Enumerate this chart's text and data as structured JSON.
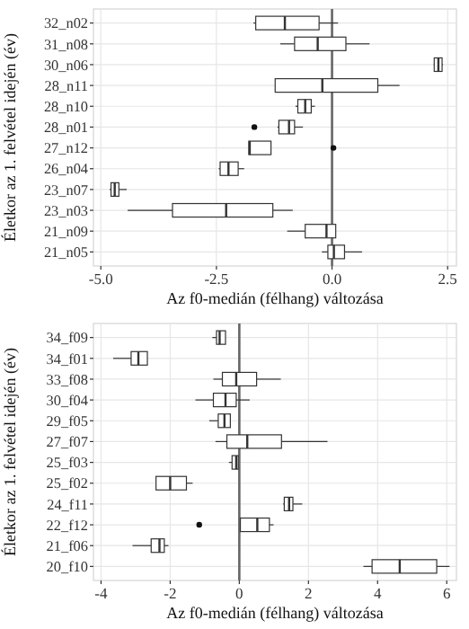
{
  "chart_data": [
    {
      "type": "box",
      "orientation": "horizontal",
      "xlabel": "Az f0-medián (félhang) változása",
      "ylabel": "Életkor az 1. felvétel idején (év)",
      "categories": [
        "32_n02",
        "31_n08",
        "30_n06",
        "28_n11",
        "28_n10",
        "28_n01",
        "27_n12",
        "26_n04",
        "23_n07",
        "23_n03",
        "21_n09",
        "21_n05"
      ],
      "boxes": [
        {
          "low": -1.7,
          "q1": -1.65,
          "median": -1.02,
          "q3": -0.28,
          "high": 0.13
        },
        {
          "low": -1.12,
          "q1": -0.81,
          "median": -0.31,
          "q3": 0.3,
          "high": 0.81
        },
        {
          "low": 2.2,
          "q1": 2.21,
          "median": 2.3,
          "q3": 2.38,
          "high": 2.4
        },
        {
          "low": -1.23,
          "q1": -1.23,
          "median": -0.21,
          "q3": 0.99,
          "high": 1.46
        },
        {
          "low": -0.79,
          "q1": -0.74,
          "median": -0.58,
          "q3": -0.45,
          "high": -0.37
        },
        {
          "low": -1.18,
          "q1": -1.15,
          "median": -0.93,
          "q3": -0.81,
          "high": -0.63,
          "outliers": [
            -1.68
          ]
        },
        {
          "low": -1.8,
          "q1": -1.8,
          "median": -1.78,
          "q3": -1.32,
          "high": -1.32,
          "outliers": [
            0.03
          ]
        },
        {
          "low": -2.45,
          "q1": -2.42,
          "median": -2.24,
          "q3": -2.03,
          "high": -1.9
        },
        {
          "low": -4.81,
          "q1": -4.78,
          "median": -4.7,
          "q3": -4.61,
          "high": -4.44
        },
        {
          "low": -4.42,
          "q1": -3.45,
          "median": -2.29,
          "q3": -1.28,
          "high": -0.85
        },
        {
          "low": -0.97,
          "q1": -0.58,
          "median": -0.12,
          "q3": 0.08,
          "high": 0.08
        },
        {
          "low": -0.22,
          "q1": -0.09,
          "median": 0.04,
          "q3": 0.27,
          "high": 0.65
        }
      ],
      "xlim": [
        -5.16,
        2.69
      ],
      "xticks": [
        {
          "value": -5,
          "label": "-5.0"
        },
        {
          "value": -2.5,
          "label": "-2.5"
        },
        {
          "value": 0,
          "label": "0.0"
        },
        {
          "value": 2.5,
          "label": "2.5"
        }
      ],
      "grid": true,
      "ref_lines": [
        {
          "axis": "x",
          "value": 0,
          "color": "#666666"
        }
      ]
    },
    {
      "type": "box",
      "orientation": "horizontal",
      "xlabel": "Az f0-medián (félhang) változása",
      "ylabel": "Életkor az 1. felvétel idején (év)",
      "categories": [
        "34_f09",
        "34_f01",
        "33_f08",
        "30_f04",
        "29_f05",
        "27_f07",
        "25_f03",
        "25_f02",
        "24_f11",
        "22_f12",
        "21_f06",
        "20_f10"
      ],
      "boxes": [
        {
          "low": -0.78,
          "q1": -0.66,
          "median": -0.57,
          "q3": -0.4,
          "high": -0.4
        },
        {
          "low": -3.65,
          "q1": -3.13,
          "median": -2.92,
          "q3": -2.66,
          "high": -2.66
        },
        {
          "low": -0.75,
          "q1": -0.49,
          "median": -0.09,
          "q3": 0.5,
          "high": 1.2
        },
        {
          "low": -1.27,
          "q1": -0.75,
          "median": -0.4,
          "q3": -0.09,
          "high": 0.3
        },
        {
          "low": -0.87,
          "q1": -0.61,
          "median": -0.43,
          "q3": -0.26,
          "high": -0.26
        },
        {
          "low": -0.69,
          "q1": -0.36,
          "median": 0.23,
          "q3": 1.22,
          "high": 2.55
        },
        {
          "low": -0.3,
          "q1": -0.21,
          "median": -0.09,
          "q3": -0.03,
          "high": -0.03
        },
        {
          "low": -2.41,
          "q1": -2.41,
          "median": -2.0,
          "q3": -1.53,
          "high": -1.35
        },
        {
          "low": 1.27,
          "q1": 1.3,
          "median": 1.44,
          "q3": 1.55,
          "high": 1.82
        },
        {
          "low": 0.03,
          "q1": 0.03,
          "median": 0.52,
          "q3": 0.87,
          "high": 0.99,
          "outliers": [
            -1.16
          ]
        },
        {
          "low": -3.09,
          "q1": -2.55,
          "median": -2.31,
          "q3": -2.17,
          "high": -2.05
        },
        {
          "low": 3.59,
          "q1": 3.84,
          "median": 4.64,
          "q3": 5.71,
          "high": 6.08
        }
      ],
      "xlim": [
        -4.22,
        6.28
      ],
      "xticks": [
        -4,
        -2,
        0,
        2,
        4,
        6
      ],
      "grid": true,
      "ref_lines": [
        {
          "axis": "x",
          "value": 0,
          "color": "#666666"
        }
      ]
    }
  ]
}
